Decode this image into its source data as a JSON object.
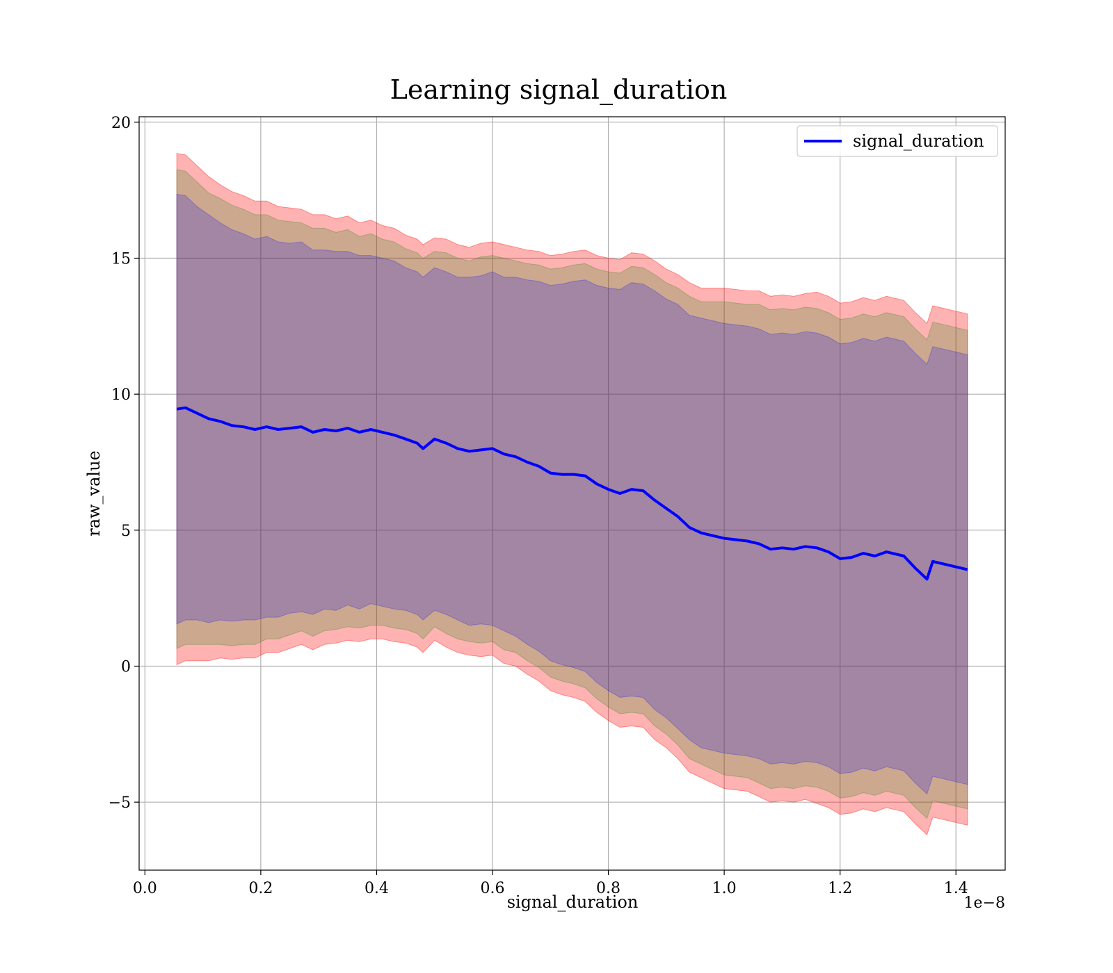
{
  "chart_data": {
    "type": "line",
    "title": "Learning signal_duration",
    "xlabel": "signal_duration",
    "ylabel": "raw_value",
    "x_offset_text": "1e−8",
    "xlim": [
      -0.01,
      1.485
    ],
    "ylim": [
      -7.5,
      20.2
    ],
    "grid": true,
    "legend_placement": "top-right",
    "x_ticks": [
      {
        "value": 0.0,
        "label": "0.0"
      },
      {
        "value": 0.2,
        "label": "0.2"
      },
      {
        "value": 0.4,
        "label": "0.4"
      },
      {
        "value": 0.6,
        "label": "0.6"
      },
      {
        "value": 0.8,
        "label": "0.8"
      },
      {
        "value": 1.0,
        "label": "1.0"
      },
      {
        "value": 1.2,
        "label": "1.2"
      },
      {
        "value": 1.4,
        "label": "1.4"
      }
    ],
    "y_ticks": [
      {
        "value": -5,
        "label": "−5"
      },
      {
        "value": 0,
        "label": "0"
      },
      {
        "value": 5,
        "label": "5"
      },
      {
        "value": 10,
        "label": "10"
      },
      {
        "value": 15,
        "label": "15"
      },
      {
        "value": 20,
        "label": "20"
      }
    ],
    "series": [
      {
        "name": "signal_duration",
        "color": "#0000ff",
        "x": [
          0.055,
          0.07,
          0.09,
          0.11,
          0.13,
          0.15,
          0.17,
          0.19,
          0.21,
          0.23,
          0.25,
          0.27,
          0.29,
          0.31,
          0.33,
          0.35,
          0.37,
          0.39,
          0.41,
          0.43,
          0.45,
          0.47,
          0.48,
          0.5,
          0.52,
          0.54,
          0.56,
          0.58,
          0.6,
          0.62,
          0.64,
          0.66,
          0.68,
          0.7,
          0.72,
          0.74,
          0.76,
          0.78,
          0.8,
          0.82,
          0.84,
          0.86,
          0.88,
          0.9,
          0.92,
          0.94,
          0.96,
          0.98,
          1.0,
          1.02,
          1.04,
          1.06,
          1.08,
          1.1,
          1.12,
          1.14,
          1.16,
          1.18,
          1.2,
          1.22,
          1.24,
          1.26,
          1.28,
          1.31,
          1.33,
          1.35,
          1.36,
          1.42
        ],
        "y": [
          9.45,
          9.5,
          9.3,
          9.1,
          9.0,
          8.85,
          8.8,
          8.7,
          8.8,
          8.7,
          8.75,
          8.8,
          8.6,
          8.7,
          8.65,
          8.75,
          8.6,
          8.7,
          8.6,
          8.5,
          8.35,
          8.2,
          8.0,
          8.35,
          8.2,
          8.0,
          7.9,
          7.95,
          8.0,
          7.8,
          7.7,
          7.5,
          7.35,
          7.1,
          7.05,
          7.05,
          7.0,
          6.7,
          6.5,
          6.35,
          6.5,
          6.45,
          6.1,
          5.8,
          5.5,
          5.1,
          4.9,
          4.8,
          4.7,
          4.65,
          4.6,
          4.5,
          4.3,
          4.35,
          4.3,
          4.4,
          4.35,
          4.2,
          3.95,
          4.0,
          4.15,
          4.05,
          4.2,
          4.05,
          3.6,
          3.2,
          3.85,
          3.55
        ]
      }
    ],
    "bands": [
      {
        "color": "#ff0000",
        "opacity": 0.3,
        "delta": [
          9.4,
          9.3,
          9.1,
          8.9,
          8.7,
          8.6,
          8.5,
          8.4,
          8.3,
          8.2,
          8.1,
          8.0,
          8.0,
          7.9,
          7.8,
          7.8,
          7.7,
          7.7,
          7.6,
          7.6,
          7.5,
          7.5,
          7.5,
          7.4,
          7.5,
          7.5,
          7.5,
          7.6,
          7.6,
          7.7,
          7.7,
          7.8,
          7.9,
          8.0,
          8.1,
          8.2,
          8.3,
          8.4,
          8.5,
          8.6,
          8.7,
          8.7,
          8.8,
          8.8,
          8.9,
          9.0,
          9.0,
          9.1,
          9.2,
          9.2,
          9.2,
          9.3,
          9.3,
          9.3,
          9.3,
          9.3,
          9.4,
          9.4,
          9.4,
          9.4,
          9.4,
          9.4,
          9.4,
          9.4,
          9.4,
          9.4,
          9.4,
          9.4
        ]
      },
      {
        "color": "#008000",
        "opacity": 0.2,
        "delta": [
          8.8,
          8.7,
          8.5,
          8.3,
          8.2,
          8.1,
          8.0,
          7.9,
          7.8,
          7.7,
          7.6,
          7.5,
          7.5,
          7.4,
          7.3,
          7.3,
          7.2,
          7.2,
          7.1,
          7.1,
          7.0,
          7.0,
          7.0,
          6.9,
          7.0,
          7.0,
          7.0,
          7.1,
          7.1,
          7.2,
          7.2,
          7.3,
          7.4,
          7.5,
          7.6,
          7.7,
          7.8,
          7.9,
          8.0,
          8.1,
          8.2,
          8.2,
          8.3,
          8.3,
          8.4,
          8.5,
          8.5,
          8.6,
          8.7,
          8.7,
          8.7,
          8.8,
          8.8,
          8.8,
          8.8,
          8.8,
          8.8,
          8.8,
          8.8,
          8.8,
          8.8,
          8.8,
          8.8,
          8.8,
          8.8,
          8.8,
          8.8,
          8.8
        ]
      },
      {
        "color": "#0000ff",
        "opacity": 0.2,
        "delta": [
          7.9,
          7.8,
          7.6,
          7.5,
          7.3,
          7.2,
          7.1,
          7.0,
          7.0,
          6.9,
          6.8,
          6.8,
          6.7,
          6.6,
          6.6,
          6.5,
          6.5,
          6.4,
          6.4,
          6.4,
          6.3,
          6.3,
          6.3,
          6.3,
          6.3,
          6.3,
          6.4,
          6.4,
          6.5,
          6.5,
          6.6,
          6.7,
          6.8,
          6.9,
          7.0,
          7.1,
          7.2,
          7.3,
          7.4,
          7.5,
          7.6,
          7.6,
          7.7,
          7.7,
          7.8,
          7.8,
          7.9,
          7.9,
          7.9,
          7.9,
          7.9,
          7.9,
          7.9,
          7.9,
          7.9,
          7.9,
          7.9,
          7.9,
          7.9,
          7.9,
          7.9,
          7.9,
          7.9,
          7.9,
          7.9,
          7.9,
          7.9,
          7.9
        ]
      }
    ]
  }
}
